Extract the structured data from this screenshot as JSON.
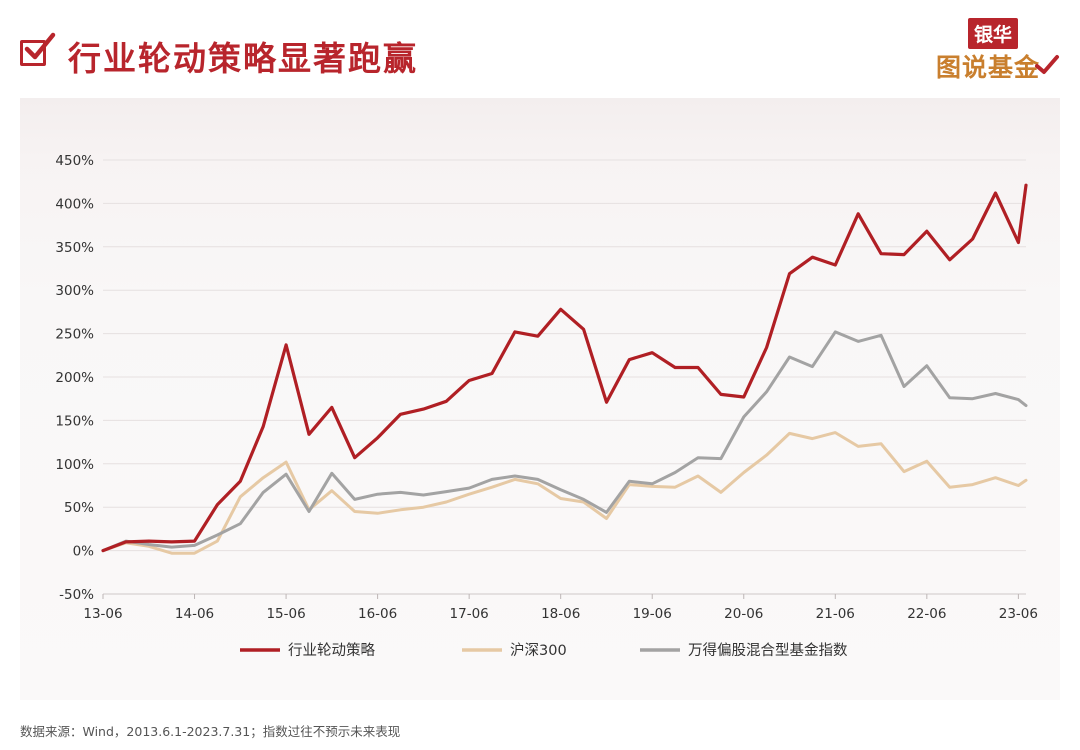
{
  "header": {
    "title": "行业轮动策略显著跑赢",
    "brand_top": "银华",
    "brand_bottom": "图说基金"
  },
  "colors": {
    "accent": "#b8252c",
    "brand_gold": "#c97f2e",
    "series_strategy": "#b01f24",
    "series_hs300": "#e6c9a4",
    "series_index": "#a3a3a3"
  },
  "footer": {
    "note": "数据来源：Wind，2013.6.1-2023.7.31；指数过往不预示未来表现"
  },
  "chart_data": {
    "type": "line",
    "title": "",
    "xlabel": "",
    "ylabel": "",
    "ylim": [
      -50,
      450
    ],
    "yticks": [
      "-50%",
      "0%",
      "50%",
      "100%",
      "150%",
      "200%",
      "250%",
      "300%",
      "350%",
      "400%",
      "450%"
    ],
    "xticks": [
      "13-06",
      "14-06",
      "15-06",
      "16-06",
      "17-06",
      "18-06",
      "19-06",
      "20-06",
      "21-06",
      "22-06",
      "23-06"
    ],
    "grid": true,
    "legend_position": "bottom",
    "x": [
      "2013-06",
      "2013-09",
      "2013-12",
      "2014-03",
      "2014-06",
      "2014-09",
      "2014-12",
      "2015-03",
      "2015-06",
      "2015-09",
      "2015-12",
      "2016-03",
      "2016-06",
      "2016-09",
      "2016-12",
      "2017-03",
      "2017-06",
      "2017-09",
      "2017-12",
      "2018-03",
      "2018-06",
      "2018-09",
      "2018-12",
      "2019-03",
      "2019-06",
      "2019-09",
      "2019-12",
      "2020-03",
      "2020-06",
      "2020-09",
      "2020-12",
      "2021-03",
      "2021-06",
      "2021-09",
      "2021-12",
      "2022-03",
      "2022-06",
      "2022-09",
      "2022-12",
      "2023-03",
      "2023-06",
      "2023-07"
    ],
    "series": [
      {
        "name": "行业轮动策略",
        "values": [
          0,
          10,
          11,
          10,
          11,
          53,
          80,
          143,
          237,
          134,
          165,
          107,
          130,
          157,
          163,
          172,
          196,
          204,
          252,
          247,
          278,
          255,
          171,
          220,
          228,
          211,
          211,
          180,
          177,
          234,
          319,
          338,
          329,
          388,
          342,
          341,
          368,
          335,
          359,
          412,
          355,
          421
        ]
      },
      {
        "name": "沪深300",
        "values": [
          0,
          9,
          5,
          -3,
          -3,
          11,
          62,
          84,
          102,
          47,
          69,
          45,
          43,
          47,
          50,
          56,
          65,
          73,
          82,
          77,
          60,
          56,
          37,
          76,
          74,
          73,
          86,
          67,
          90,
          110,
          135,
          129,
          136,
          120,
          123,
          91,
          103,
          73,
          76,
          84,
          75,
          81
        ]
      },
      {
        "name": "万得偏股混合型基金指数",
        "values": [
          0,
          11,
          7,
          4,
          6,
          18,
          31,
          67,
          88,
          45,
          89,
          59,
          65,
          67,
          64,
          68,
          72,
          82,
          86,
          82,
          70,
          59,
          44,
          80,
          77,
          90,
          107,
          106,
          154,
          183,
          223,
          212,
          252,
          241,
          248,
          189,
          213,
          176,
          175,
          181,
          174,
          167
        ]
      }
    ]
  }
}
